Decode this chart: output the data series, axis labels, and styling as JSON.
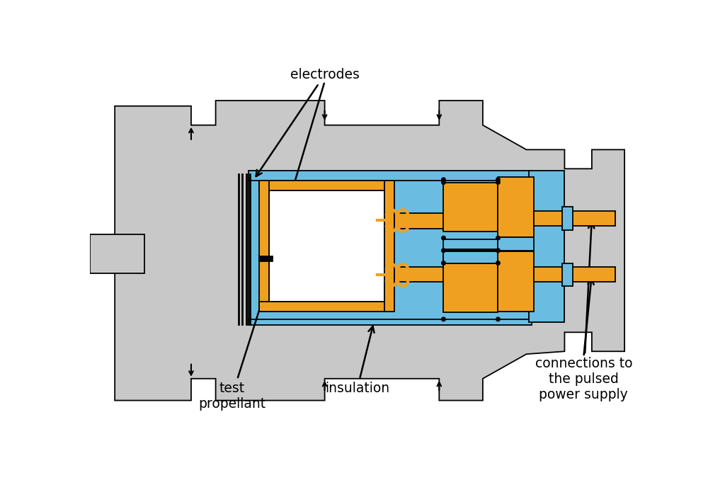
{
  "gray": "#c8c8c8",
  "blue": "#6abde0",
  "orange": "#f0a020",
  "white": "#ffffff",
  "black": "#000000",
  "bg": "#ffffff",
  "lw": 1.3,
  "label_fontsize": 13.5,
  "labels": {
    "electrodes": "electrodes",
    "test_propellant": "test\npropellant",
    "insulation": "insulation",
    "connections": "connections to\nthe pulsed\npower supply"
  }
}
